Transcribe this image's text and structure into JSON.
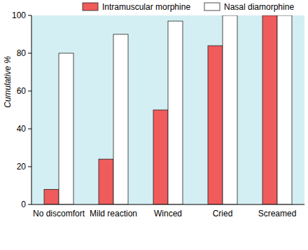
{
  "chart_data": {
    "type": "bar",
    "y_label": "Cumulative %",
    "categories": [
      "No discomfort",
      "Mild reaction",
      "Winced",
      "Cried",
      "Screamed"
    ],
    "series": [
      {
        "name": "Intramuscular morphine",
        "color": "#f05b5b",
        "values": [
          8,
          24,
          50,
          84,
          100
        ]
      },
      {
        "name": "Nasal diamorphine",
        "color": "#ffffff",
        "values": [
          80,
          90,
          97,
          100,
          100
        ]
      }
    ],
    "ylim": [
      0,
      100
    ],
    "yticks": [
      0,
      20,
      40,
      60,
      80,
      100
    ],
    "grid": false,
    "legend": "top"
  }
}
